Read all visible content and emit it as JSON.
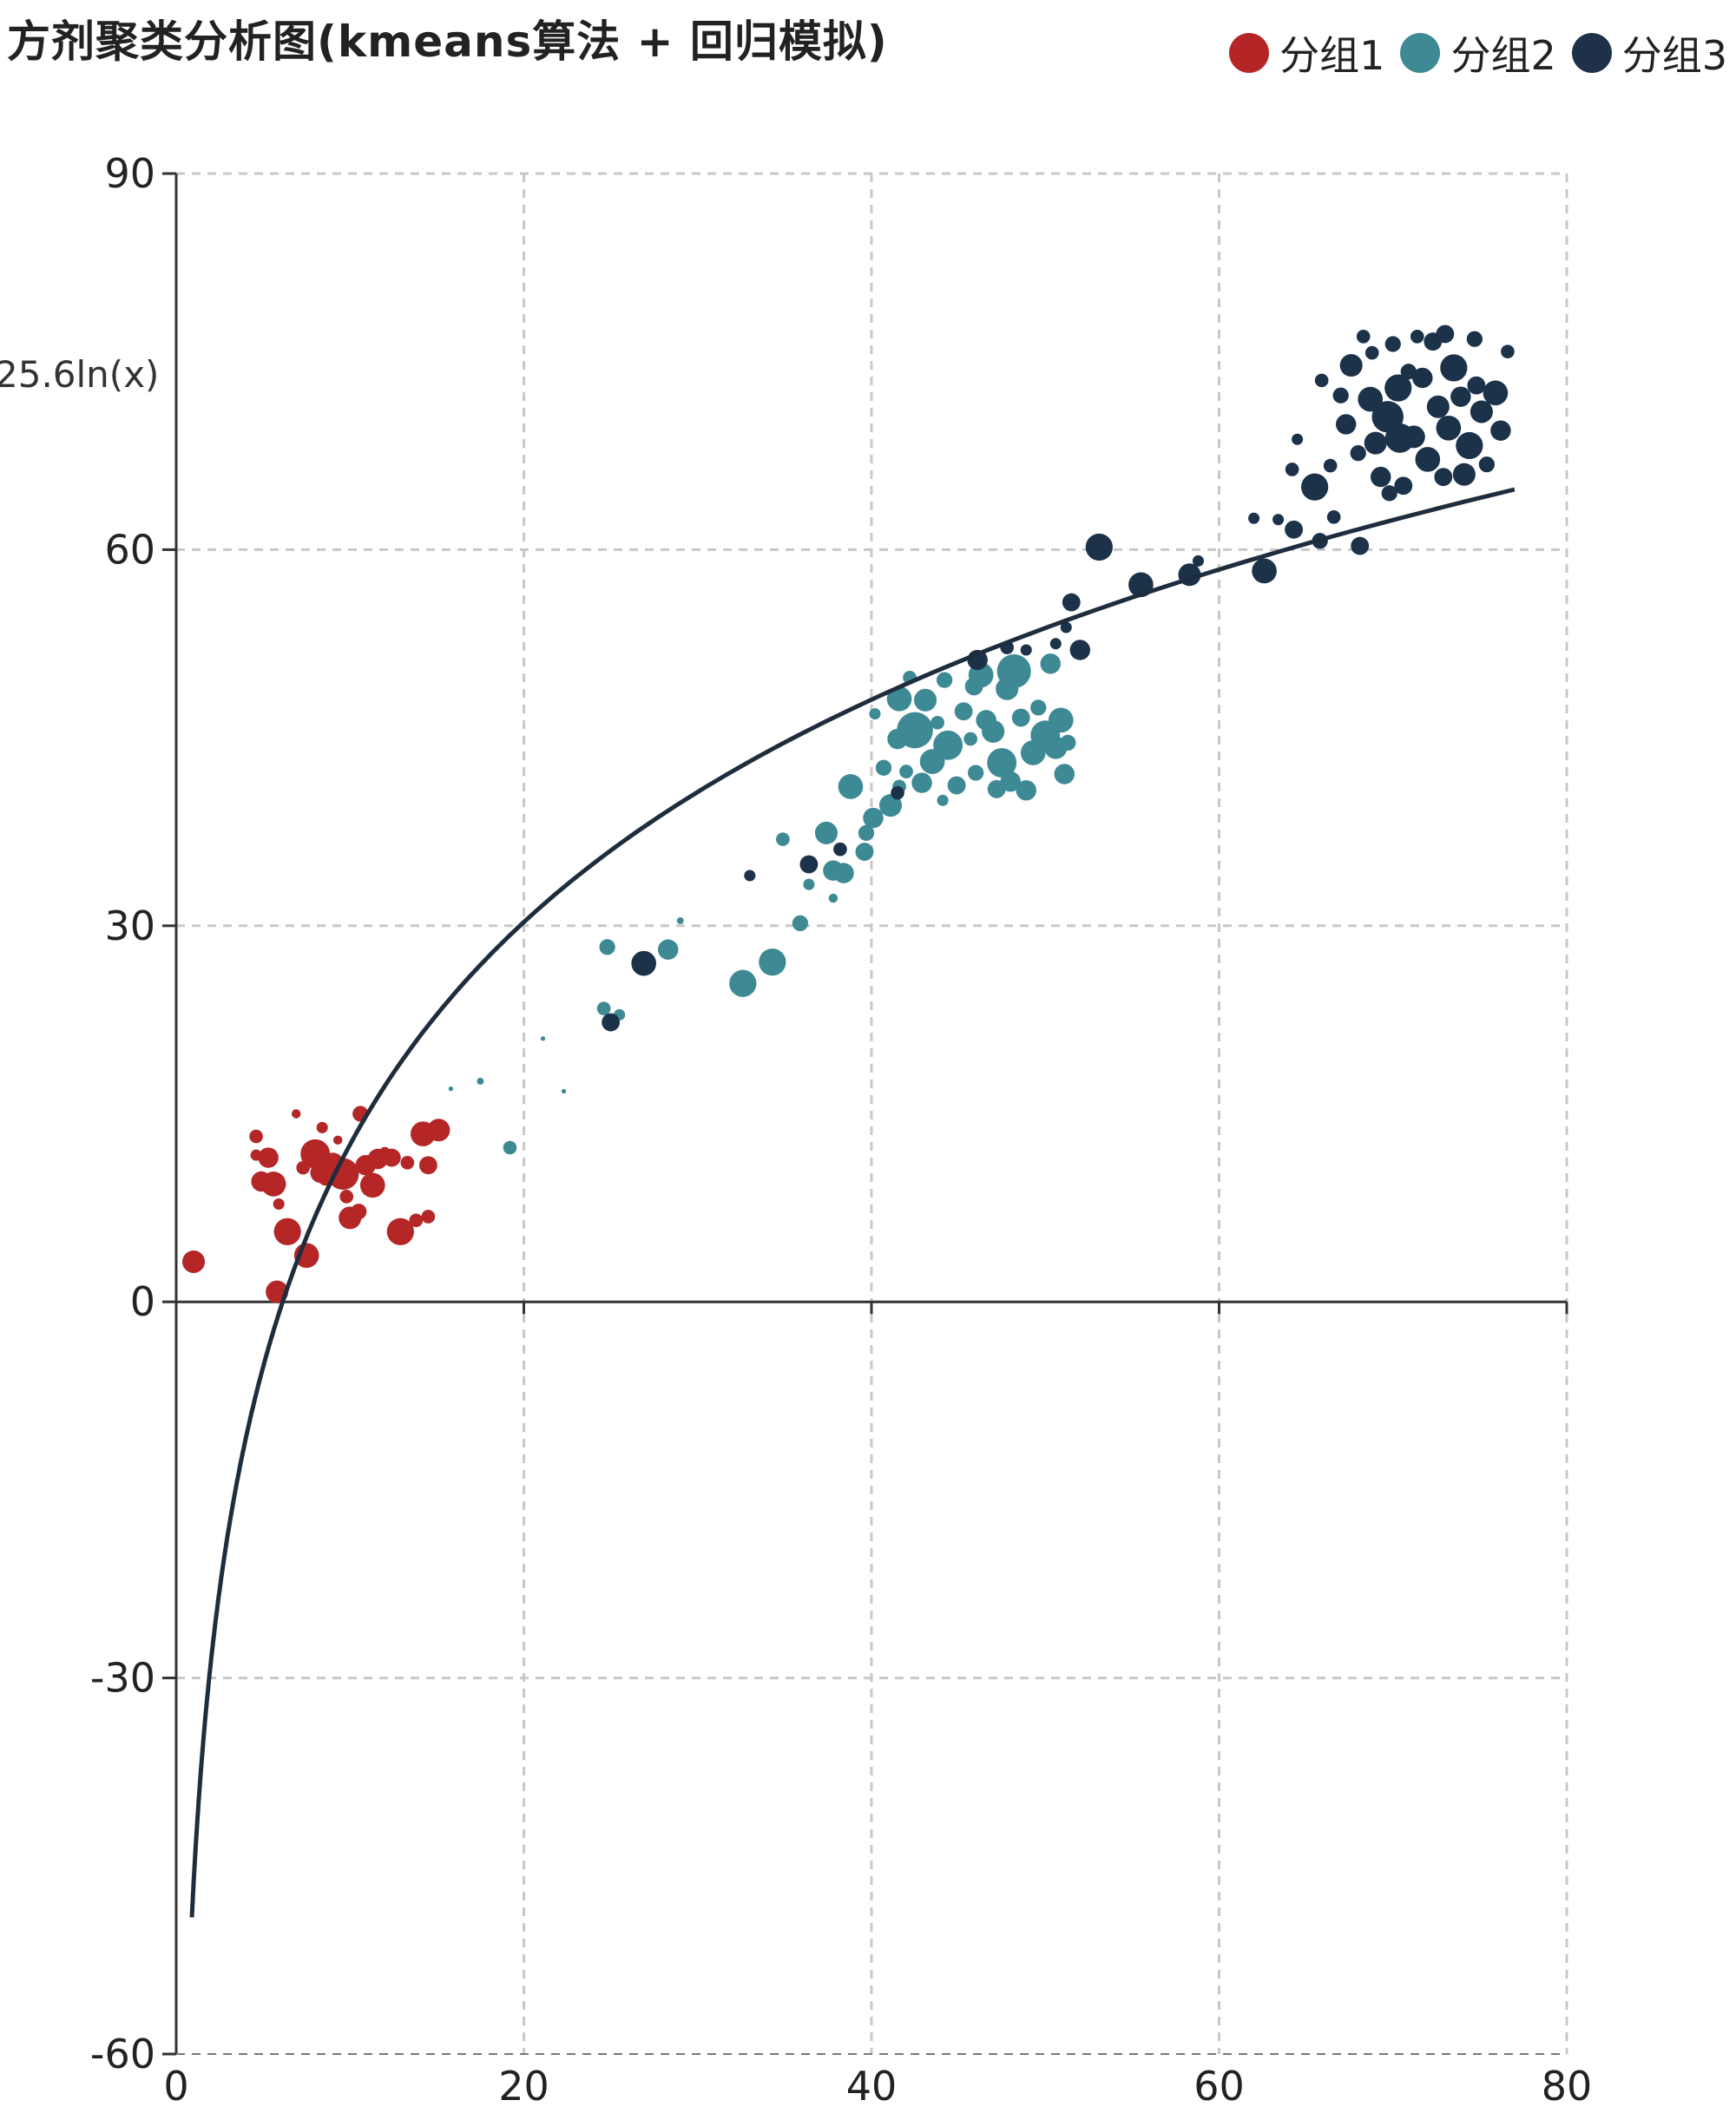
{
  "title": "方剂聚类分析图(kmeans算法 + 回归模拟)",
  "legend": [
    {
      "label": "分组1",
      "color": "#b52525"
    },
    {
      "label": "分组2",
      "color": "#3e8a94"
    },
    {
      "label": "分组3",
      "color": "#1e3148"
    }
  ],
  "equation_label": "25.6ln(x)",
  "chart_data": {
    "type": "scatter",
    "title": "方剂聚类分析图(kmeans算法 + 回归模拟)",
    "xlabel": "",
    "ylabel": "",
    "xlim": [
      0,
      80
    ],
    "ylim": [
      -60,
      90
    ],
    "x_ticks": [
      0,
      20,
      40,
      60,
      80
    ],
    "y_ticks": [
      -60,
      -30,
      0,
      30,
      60,
      90
    ],
    "x_tick_labels": [
      "0",
      "20",
      "40",
      "60",
      "80"
    ],
    "y_tick_labels": [
      "-60",
      "-30",
      "0",
      "30",
      "60",
      "90"
    ],
    "grid": true,
    "legend_position": "top-right",
    "regression": {
      "label": "25.6ln(x)",
      "a": 25.6,
      "b": -46.4,
      "x_range": [
        0.9,
        77
      ],
      "color": "#1e2d3d"
    },
    "series": [
      {
        "name": "分组1",
        "color": "#b52525",
        "points": [
          [
            1.0,
            3.2,
            1.0
          ],
          [
            4.9,
            9.6,
            0.9
          ],
          [
            4.6,
            11.7,
            0.5
          ],
          [
            4.6,
            13.2,
            0.6
          ],
          [
            5.3,
            11.5,
            0.9
          ],
          [
            5.6,
            9.4,
            1.1
          ],
          [
            5.9,
            7.8,
            0.5
          ],
          [
            6.4,
            5.6,
            1.2
          ],
          [
            7.5,
            3.7,
            1.1
          ],
          [
            8.0,
            11.8,
            1.3
          ],
          [
            8.3,
            10.3,
            0.9
          ],
          [
            8.4,
            13.9,
            0.5
          ],
          [
            9.0,
            11.0,
            1.0
          ],
          [
            9.6,
            10.2,
            1.4
          ],
          [
            9.8,
            8.4,
            0.6
          ],
          [
            10.0,
            6.7,
            1.0
          ],
          [
            10.5,
            7.2,
            0.7
          ],
          [
            10.6,
            15.0,
            0.7
          ],
          [
            10.9,
            10.9,
            0.9
          ],
          [
            11.3,
            9.3,
            1.1
          ],
          [
            11.6,
            11.4,
            0.9
          ],
          [
            12.0,
            11.9,
            0.5
          ],
          [
            12.9,
            5.6,
            1.2
          ],
          [
            13.3,
            11.1,
            0.6
          ],
          [
            13.8,
            6.5,
            0.6
          ],
          [
            14.2,
            13.4,
            1.1
          ],
          [
            14.5,
            10.9,
            0.8
          ],
          [
            14.5,
            6.8,
            0.6
          ],
          [
            15.1,
            13.7,
            1.0
          ],
          [
            5.8,
            0.8,
            1.0
          ],
          [
            7.3,
            10.7,
            0.6
          ],
          [
            8.6,
            9.9,
            0.7
          ],
          [
            6.9,
            15.0,
            0.4
          ],
          [
            12.4,
            11.5,
            0.8
          ],
          [
            9.3,
            12.9,
            0.4
          ]
        ]
      },
      {
        "name": "分组2",
        "color": "#3e8a94",
        "points": [
          [
            19.2,
            12.3,
            0.6
          ],
          [
            17.5,
            17.6,
            0.3
          ],
          [
            15.8,
            17.0,
            0.2
          ],
          [
            21.1,
            21.0,
            0.2
          ],
          [
            22.3,
            16.8,
            0.2
          ],
          [
            24.8,
            28.3,
            0.7
          ],
          [
            24.6,
            23.4,
            0.6
          ],
          [
            25.5,
            22.9,
            0.5
          ],
          [
            28.3,
            28.1,
            0.9
          ],
          [
            29.0,
            30.4,
            0.3
          ],
          [
            32.6,
            25.4,
            1.2
          ],
          [
            34.3,
            27.1,
            1.2
          ],
          [
            34.9,
            36.9,
            0.6
          ],
          [
            35.9,
            30.2,
            0.7
          ],
          [
            36.4,
            33.3,
            0.5
          ],
          [
            37.4,
            37.4,
            1.0
          ],
          [
            37.8,
            34.4,
            0.9
          ],
          [
            38.4,
            34.2,
            0.9
          ],
          [
            37.8,
            32.2,
            0.4
          ],
          [
            38.8,
            41.1,
            1.1
          ],
          [
            39.6,
            35.9,
            0.8
          ],
          [
            40.1,
            38.6,
            0.9
          ],
          [
            39.7,
            37.4,
            0.7
          ],
          [
            40.2,
            46.9,
            0.5
          ],
          [
            40.7,
            42.6,
            0.7
          ],
          [
            41.1,
            39.6,
            1.0
          ],
          [
            41.5,
            44.9,
            0.9
          ],
          [
            41.6,
            48.1,
            1.1
          ],
          [
            42.0,
            42.3,
            0.6
          ],
          [
            42.5,
            45.6,
            1.6
          ],
          [
            42.9,
            41.4,
            0.9
          ],
          [
            43.1,
            48.0,
            1.0
          ],
          [
            43.5,
            43.1,
            1.1
          ],
          [
            43.8,
            46.2,
            0.6
          ],
          [
            44.2,
            49.6,
            0.7
          ],
          [
            44.4,
            44.4,
            1.3
          ],
          [
            44.9,
            41.2,
            0.8
          ],
          [
            45.3,
            47.1,
            0.8
          ],
          [
            45.7,
            44.9,
            0.6
          ],
          [
            46.0,
            42.2,
            0.7
          ],
          [
            46.3,
            50.0,
            1.1
          ],
          [
            46.6,
            46.4,
            0.9
          ],
          [
            47.0,
            45.5,
            1.0
          ],
          [
            47.2,
            40.9,
            0.8
          ],
          [
            47.5,
            43.0,
            1.3
          ],
          [
            47.8,
            48.9,
            1.0
          ],
          [
            48.2,
            50.3,
            1.5
          ],
          [
            48.6,
            46.6,
            0.8
          ],
          [
            48.9,
            40.8,
            0.9
          ],
          [
            49.3,
            43.8,
            1.1
          ],
          [
            49.6,
            47.4,
            0.7
          ],
          [
            50.0,
            45.2,
            1.3
          ],
          [
            50.3,
            50.9,
            0.9
          ],
          [
            50.6,
            44.2,
            1.0
          ],
          [
            50.9,
            46.4,
            1.1
          ],
          [
            51.1,
            42.1,
            0.9
          ],
          [
            51.3,
            44.6,
            0.7
          ],
          [
            48.0,
            41.5,
            0.9
          ],
          [
            45.9,
            49.1,
            0.8
          ],
          [
            44.1,
            40.0,
            0.5
          ],
          [
            42.2,
            49.8,
            0.6
          ],
          [
            41.6,
            41.1,
            0.6
          ]
        ]
      },
      {
        "name": "分组3",
        "color": "#1e3148",
        "points": [
          [
            26.9,
            27.0,
            1.1
          ],
          [
            25.0,
            22.3,
            0.8
          ],
          [
            33.0,
            34.0,
            0.5
          ],
          [
            36.4,
            34.9,
            0.8
          ],
          [
            38.2,
            36.1,
            0.6
          ],
          [
            41.5,
            40.6,
            0.6
          ],
          [
            46.1,
            51.2,
            0.9
          ],
          [
            47.8,
            52.2,
            0.6
          ],
          [
            48.9,
            52.0,
            0.5
          ],
          [
            50.6,
            52.5,
            0.5
          ],
          [
            51.2,
            53.8,
            0.5
          ],
          [
            51.5,
            55.8,
            0.8
          ],
          [
            52.0,
            52.0,
            0.9
          ],
          [
            53.1,
            60.2,
            1.2
          ],
          [
            55.5,
            57.2,
            1.1
          ],
          [
            58.3,
            58.0,
            1.0
          ],
          [
            58.8,
            59.1,
            0.5
          ],
          [
            62.0,
            62.5,
            0.5
          ],
          [
            62.6,
            58.3,
            1.1
          ],
          [
            63.4,
            62.4,
            0.5
          ],
          [
            64.3,
            61.6,
            0.8
          ],
          [
            64.2,
            66.4,
            0.6
          ],
          [
            64.5,
            68.8,
            0.5
          ],
          [
            65.5,
            65.0,
            1.2
          ],
          [
            65.9,
            73.5,
            0.6
          ],
          [
            65.8,
            60.7,
            0.7
          ],
          [
            67.3,
            70.0,
            0.9
          ],
          [
            67.6,
            74.7,
            1.0
          ],
          [
            68.1,
            60.3,
            0.8
          ],
          [
            68.3,
            77.0,
            0.6
          ],
          [
            68.7,
            72.0,
            1.1
          ],
          [
            69.0,
            68.5,
            1.0
          ],
          [
            69.3,
            65.8,
            0.9
          ],
          [
            69.7,
            70.6,
            1.4
          ],
          [
            70.0,
            76.4,
            0.7
          ],
          [
            70.4,
            68.9,
            1.3
          ],
          [
            70.6,
            65.1,
            0.8
          ],
          [
            70.9,
            74.2,
            0.7
          ],
          [
            71.2,
            69.0,
            1.0
          ],
          [
            71.7,
            73.7,
            0.9
          ],
          [
            72.0,
            67.2,
            1.1
          ],
          [
            72.3,
            76.6,
            0.8
          ],
          [
            72.6,
            71.4,
            1.0
          ],
          [
            72.9,
            65.8,
            0.8
          ],
          [
            73.2,
            69.7,
            1.1
          ],
          [
            73.5,
            74.5,
            1.2
          ],
          [
            73.9,
            72.2,
            0.9
          ],
          [
            74.1,
            66.0,
            1.0
          ],
          [
            74.4,
            68.3,
            1.2
          ],
          [
            74.8,
            73.1,
            0.8
          ],
          [
            75.1,
            71.0,
            1.0
          ],
          [
            75.4,
            66.8,
            0.7
          ],
          [
            75.9,
            72.5,
            1.1
          ],
          [
            76.2,
            69.5,
            0.9
          ],
          [
            76.6,
            75.8,
            0.6
          ],
          [
            69.8,
            64.5,
            0.7
          ],
          [
            66.4,
            66.7,
            0.6
          ],
          [
            67.0,
            72.3,
            0.7
          ],
          [
            68.8,
            75.7,
            0.6
          ],
          [
            71.4,
            77.0,
            0.6
          ],
          [
            73.0,
            77.2,
            0.8
          ],
          [
            74.7,
            76.8,
            0.7
          ],
          [
            66.6,
            62.6,
            0.6
          ],
          [
            70.3,
            72.9,
            1.2
          ],
          [
            68.0,
            67.7,
            0.7
          ]
        ]
      }
    ]
  }
}
